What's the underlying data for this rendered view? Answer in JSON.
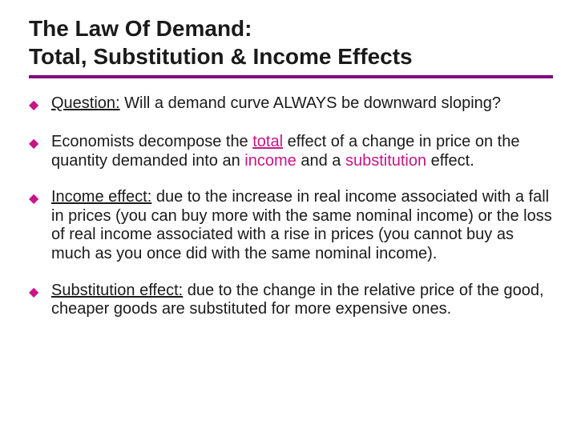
{
  "accent_color": "#c71585",
  "rule_color": "#800080",
  "title": {
    "line1": "The Law Of Demand:",
    "line2": "Total, Substitution & Income Effects"
  },
  "bullets": [
    {
      "parts": [
        {
          "text": "Question:",
          "underline": true
        },
        {
          "text": " Will a demand curve ALWAYS be downward sloping?"
        }
      ]
    },
    {
      "parts": [
        {
          "text": "Economists decompose the "
        },
        {
          "text": "total",
          "accent": true,
          "underline": true
        },
        {
          "text": " effect of a change in price on the quantity demanded into an "
        },
        {
          "text": "income",
          "accent": true
        },
        {
          "text": " and a "
        },
        {
          "text": "substitution",
          "accent": true
        },
        {
          "text": " effect."
        }
      ]
    },
    {
      "parts": [
        {
          "text": "Income effect:",
          "underline": true
        },
        {
          "text": " due to the increase in real income associated with a fall in prices (you can buy more with the same nominal income) or the loss of real income associated with a rise in prices (you cannot buy as much as you once did with the same nominal income)."
        }
      ]
    },
    {
      "parts": [
        {
          "text": "Substitution effect:",
          "underline": true
        },
        {
          "text": " due to the change in the relative price of the good, cheaper goods are substituted for more expensive ones."
        }
      ]
    }
  ]
}
